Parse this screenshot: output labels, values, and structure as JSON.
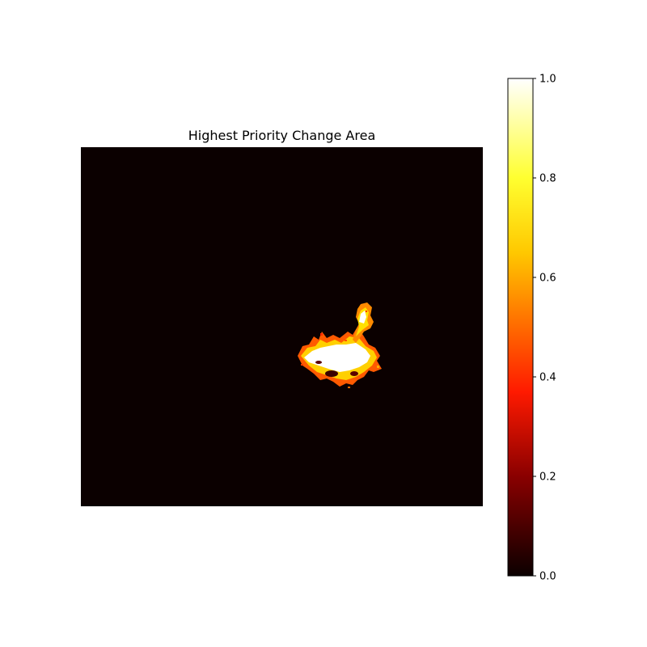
{
  "chart_data": {
    "type": "heatmap",
    "title": "Highest Priority Change Area",
    "axes_visible": false,
    "colormap": "hot",
    "colormap_stops": [
      "#0b0000",
      "#8a0000",
      "#ff1a00",
      "#ff6a00",
      "#ffc800",
      "#ffff30",
      "#ffffff"
    ],
    "background_value": 0.0,
    "colorbar": {
      "position": "right",
      "vmin": 0.0,
      "vmax": 1.0,
      "ticks": [
        "0.0",
        "0.2",
        "0.4",
        "0.6",
        "0.8",
        "1.0"
      ]
    },
    "highlighted_region": {
      "description": "single irregular cluster of high values (near 1.0) right of center, with a small plume extending upward",
      "peak_value": 1.0
    }
  }
}
